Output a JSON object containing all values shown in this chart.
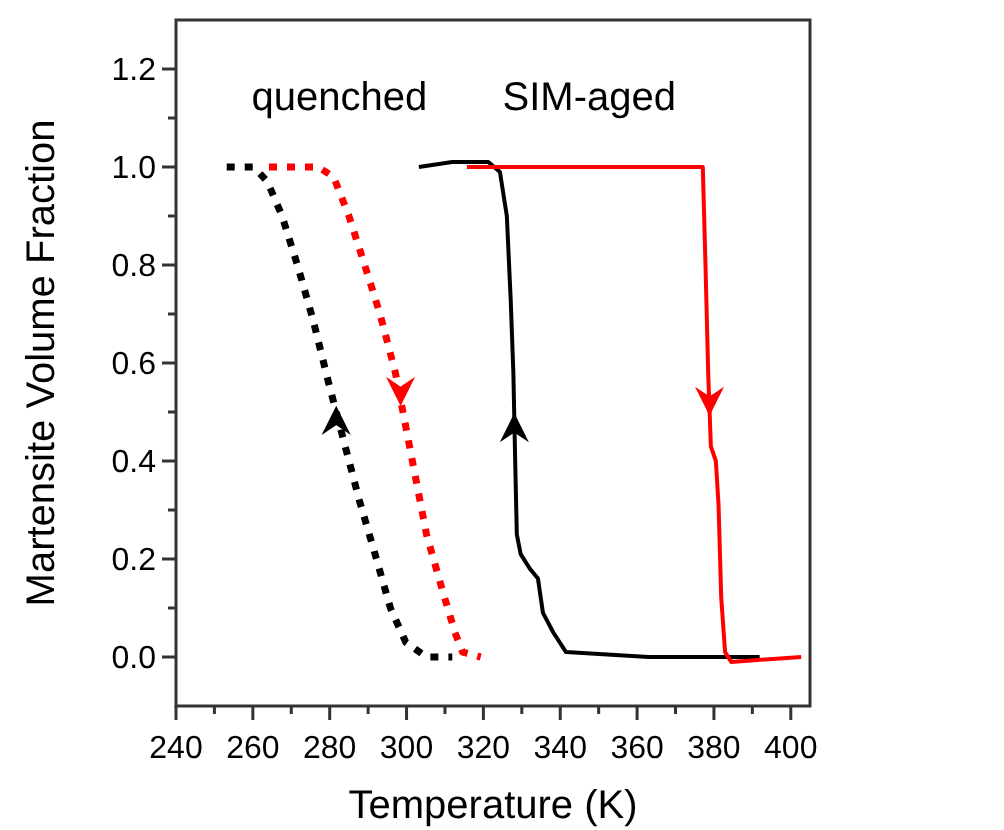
{
  "chart_data": {
    "type": "line",
    "xlabel": "Temperature (K)",
    "ylabel": "Martensite Volume Fraction",
    "xlim": [
      240,
      405
    ],
    "ylim": [
      -0.1,
      1.3
    ],
    "xticks": [
      240,
      {
        "value": 250,
        "label": null
      },
      260,
      {
        "value": 270,
        "label": null
      },
      280,
      {
        "value": 290,
        "label": null
      },
      300,
      {
        "value": 310,
        "label": null
      },
      320,
      {
        "value": 330,
        "label": null
      },
      340,
      {
        "value": 350,
        "label": null
      },
      360,
      {
        "value": 370,
        "label": null
      },
      380,
      {
        "value": 390,
        "label": null
      },
      400
    ],
    "yticks": [
      {
        "value": 0,
        "label": "0.0"
      },
      {
        "value": 0.1,
        "label": null
      },
      {
        "value": 0.2,
        "label": "0.2"
      },
      {
        "value": 0.3,
        "label": null
      },
      {
        "value": 0.4,
        "label": "0.4"
      },
      {
        "value": 0.5,
        "label": null
      },
      {
        "value": 0.6,
        "label": "0.6"
      },
      {
        "value": 0.7,
        "label": null
      },
      {
        "value": 0.8,
        "label": "0.8"
      },
      {
        "value": 0.9,
        "label": null
      },
      {
        "value": 1.0,
        "label": "1.0"
      },
      {
        "value": 1.1,
        "label": null
      },
      {
        "value": 1.2,
        "label": "1.2"
      }
    ],
    "grid": false,
    "annotations": [
      "quenched",
      "SIM-aged"
    ],
    "series": [
      {
        "color": "#000000",
        "line_style": "dotted",
        "x": [
          253.2,
          260.2,
          263.8,
          267.6,
          271.6,
          275.6,
          279.7,
          283.7,
          287.7,
          291.8,
          295.8,
          299.8,
          305.2,
          311.9
        ],
        "values": [
          1.0,
          1.0,
          0.97,
          0.9,
          0.8,
          0.69,
          0.56,
          0.44,
          0.32,
          0.21,
          0.1,
          0.03,
          0,
          0
        ]
      },
      {
        "color": "#ff0000",
        "line_style": "dotted",
        "x": [
          264.2,
          277,
          281,
          285,
          289.1,
          293.1,
          297.1,
          299.8,
          302.5,
          305.2,
          309.2,
          312.6,
          314.6,
          319.3
        ],
        "values": [
          1.0,
          1.0,
          0.98,
          0.9,
          0.8,
          0.7,
          0.58,
          0.47,
          0.36,
          0.25,
          0.14,
          0.05,
          0.01,
          0
        ]
      },
      {
        "color": "#000000",
        "line_style": "solid",
        "x": [
          303.2,
          311.9,
          321.3,
          324.3,
          326.1,
          327.1,
          327.8,
          328.3,
          328.7,
          329.7,
          332.1,
          334.2,
          335.5,
          338.2,
          341.5,
          363,
          391.9
        ],
        "values": [
          1.0,
          1.01,
          1.01,
          0.99,
          0.9,
          0.73,
          0.58,
          0.39,
          0.25,
          0.21,
          0.18,
          0.16,
          0.09,
          0.05,
          0.01,
          0,
          0
        ]
      },
      {
        "color": "#ff0000",
        "line_style": "solid",
        "x": [
          315.7,
          363,
          377.1,
          377.8,
          378.5,
          379.2,
          380.5,
          381.2,
          381.9,
          382.9,
          384.5,
          402.7
        ],
        "values": [
          1.0,
          1.0,
          1.0,
          0.8,
          0.58,
          0.43,
          0.4,
          0.31,
          0.12,
          0.01,
          -0.01,
          0
        ]
      }
    ]
  }
}
